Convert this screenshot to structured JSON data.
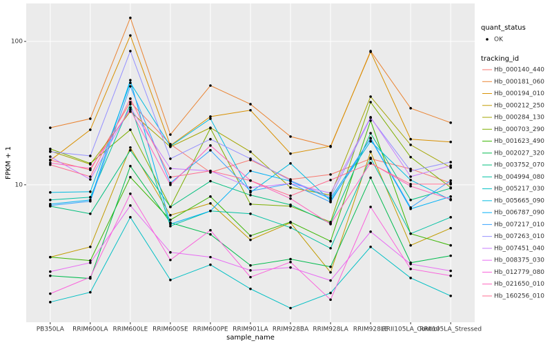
{
  "chart_data": {
    "type": "line",
    "x_label": "sample_name",
    "y_label": "FPKM + 1",
    "log_y": true,
    "grid": true,
    "categories": [
      "PB350LA",
      "RRIM600LA",
      "RRIM600LE",
      "RRIM600SE",
      "RRIM600PE",
      "RRIM901LA",
      "RRIM928BA",
      "RRIM928LA",
      "RRIM928LE",
      "RRII105LA_Control",
      "RRII105LA_Stressed"
    ],
    "ylim": [
      1.1,
      184
    ],
    "yticks": [
      10,
      100
    ],
    "legend": {
      "shape_title": "quant_status",
      "shape_labels": [
        "OK"
      ],
      "color_title": "tracking_id"
    },
    "series": [
      {
        "name": "Hb_000140_440",
        "color": "#F8766D",
        "values": [
          14.9,
          12.7,
          37.7,
          19.2,
          12.2,
          14.9,
          10.9,
          11.8,
          15.2,
          12.9,
          10.3
        ]
      },
      {
        "name": "Hb_000181_060",
        "color": "#EA8331",
        "values": [
          25.0,
          28.9,
          146,
          22.4,
          49.2,
          36.5,
          21.7,
          18.4,
          85.6,
          34.2,
          27.1
        ]
      },
      {
        "name": "Hb_000194_010",
        "color": "#D89000",
        "values": [
          14.8,
          24.2,
          110,
          18.8,
          29.9,
          33.1,
          16.5,
          18.6,
          84.6,
          20.8,
          19.9
        ]
      },
      {
        "name": "Hb_000212_250",
        "color": "#C09B00",
        "values": [
          3.13,
          3.69,
          18.2,
          6.14,
          7.42,
          4.13,
          5.44,
          2.45,
          17.0,
          3.78,
          4.98
        ]
      },
      {
        "name": "Hb_000284_130",
        "color": "#A3A500",
        "values": [
          17.2,
          13.9,
          32.4,
          18.4,
          25.0,
          17.0,
          9.57,
          8.47,
          41.2,
          19.0,
          13.2
        ]
      },
      {
        "name": "Hb_000703_290",
        "color": "#7CAE00",
        "values": [
          17.8,
          14.1,
          24.2,
          7.01,
          24.8,
          7.33,
          7.09,
          5.5,
          37.7,
          15.6,
          9.57
        ]
      },
      {
        "name": "Hb_001623_490",
        "color": "#39B600",
        "values": [
          3.13,
          2.96,
          11.3,
          5.69,
          8.28,
          4.41,
          5.5,
          4.04,
          28.0,
          4.56,
          3.78
        ]
      },
      {
        "name": "Hb_002027_320",
        "color": "#00BB4E",
        "values": [
          2.32,
          2.22,
          13.5,
          5.44,
          4.51,
          2.74,
          3.03,
          2.68,
          11.2,
          2.86,
          3.2
        ]
      },
      {
        "name": "Hb_003752_070",
        "color": "#00BF7D",
        "values": [
          7.09,
          6.28,
          17.4,
          7.01,
          10.6,
          8.47,
          7.25,
          5.38,
          22.9,
          7.84,
          9.46
        ]
      },
      {
        "name": "Hb_004994_080",
        "color": "#00C1A3",
        "values": [
          7.84,
          8.19,
          36.5,
          5.15,
          6.57,
          6.28,
          5.03,
          3.61,
          15.4,
          4.56,
          5.94
        ]
      },
      {
        "name": "Hb_005217_030",
        "color": "#00BFC4",
        "values": [
          1.52,
          1.78,
          5.94,
          2.17,
          2.77,
          1.88,
          1.38,
          1.76,
          3.69,
          2.24,
          1.68
        ]
      },
      {
        "name": "Hb_005665_090",
        "color": "#00BAE0",
        "values": [
          8.85,
          8.95,
          51.4,
          18.6,
          28.9,
          8.85,
          14.1,
          7.75,
          20.1,
          10.8,
          7.84
        ]
      },
      {
        "name": "Hb_006787_090",
        "color": "#00B0F6",
        "values": [
          7.33,
          7.84,
          53.7,
          5.32,
          6.57,
          12.5,
          10.6,
          8.01,
          21.0,
          6.79,
          8.28
        ]
      },
      {
        "name": "Hb_007217_010",
        "color": "#35A2FF",
        "values": [
          7.17,
          7.67,
          48.6,
          10.3,
          17.4,
          9.05,
          10.2,
          7.58,
          21.2,
          6.94,
          10.7
        ]
      },
      {
        "name": "Hb_007263_010",
        "color": "#9590FF",
        "values": [
          17.0,
          15.9,
          85.6,
          15.2,
          20.8,
          15.2,
          10.7,
          8.19,
          29.3,
          12.5,
          14.4
        ]
      },
      {
        "name": "Hb_007451_040",
        "color": "#C77CFF",
        "values": [
          15.7,
          10.9,
          34.5,
          13.0,
          12.5,
          9.57,
          10.2,
          8.75,
          29.6,
          11.4,
          13.6
        ]
      },
      {
        "name": "Hb_008375_030",
        "color": "#E76BF3",
        "values": [
          2.48,
          2.86,
          7.17,
          3.38,
          3.13,
          2.53,
          2.65,
          2.15,
          4.71,
          2.8,
          2.51
        ]
      },
      {
        "name": "Hb_012779_080",
        "color": "#FA62DB",
        "values": [
          1.74,
          2.27,
          8.66,
          2.99,
          4.82,
          2.27,
          2.89,
          1.58,
          7.01,
          2.59,
          2.32
        ]
      },
      {
        "name": "Hb_021650_010",
        "color": "#FF62BC",
        "values": [
          14.2,
          13.0,
          33.4,
          10.0,
          18.8,
          10.7,
          8.01,
          5.32,
          14.2,
          9.78,
          7.92
        ]
      },
      {
        "name": "Hb_160256_010",
        "color": "#FF6C91",
        "values": [
          13.8,
          11.4,
          39.9,
          11.3,
          12.5,
          10.7,
          8.38,
          10.8,
          14.1,
          10.1,
          10.1
        ]
      }
    ]
  }
}
